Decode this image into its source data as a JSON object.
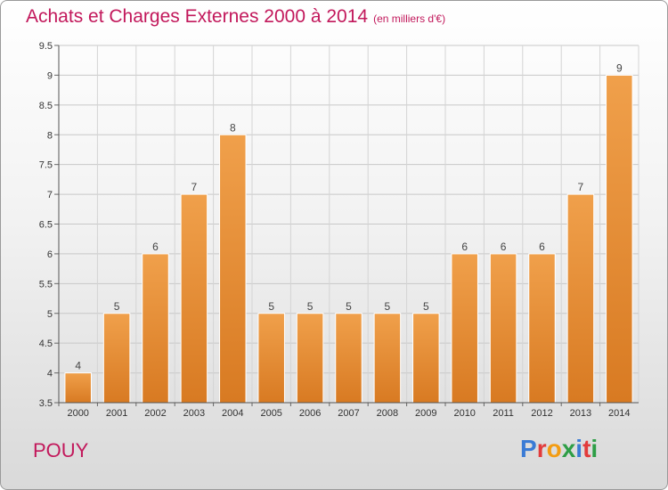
{
  "title": "Achats et Charges Externes 2000 à 2014",
  "subtitle": "(en milliers d'€)",
  "place": "POUY",
  "logo": {
    "text": "Proxiti",
    "colors": [
      "#3a7bd5",
      "#e23b3b",
      "#f39c12",
      "#2e9e46",
      "#3a7bd5",
      "#e23b3b",
      "#2e9e46"
    ]
  },
  "colors": {
    "bar": "#f0a04b",
    "bar_dark": "#d87a22",
    "title": "#c2185b"
  },
  "chart_data": {
    "type": "bar",
    "categories": [
      "2000",
      "2001",
      "2002",
      "2003",
      "2004",
      "2005",
      "2006",
      "2007",
      "2008",
      "2009",
      "2010",
      "2011",
      "2012",
      "2013",
      "2014"
    ],
    "values": [
      4,
      5,
      6,
      7,
      8,
      5,
      5,
      5,
      5,
      5,
      6,
      6,
      6,
      7,
      9
    ],
    "data_labels": [
      "4",
      "5",
      "6",
      "7",
      "8",
      "5",
      "5",
      "5",
      "5",
      "5",
      "6",
      "6",
      "6",
      "7",
      "9"
    ],
    "ylim": [
      3.5,
      9.5
    ],
    "yticks": [
      "3.5",
      "4",
      "4.5",
      "5",
      "5.5",
      "6",
      "6.5",
      "7",
      "7.5",
      "8",
      "8.5",
      "9",
      "9.5"
    ],
    "grid": true
  }
}
